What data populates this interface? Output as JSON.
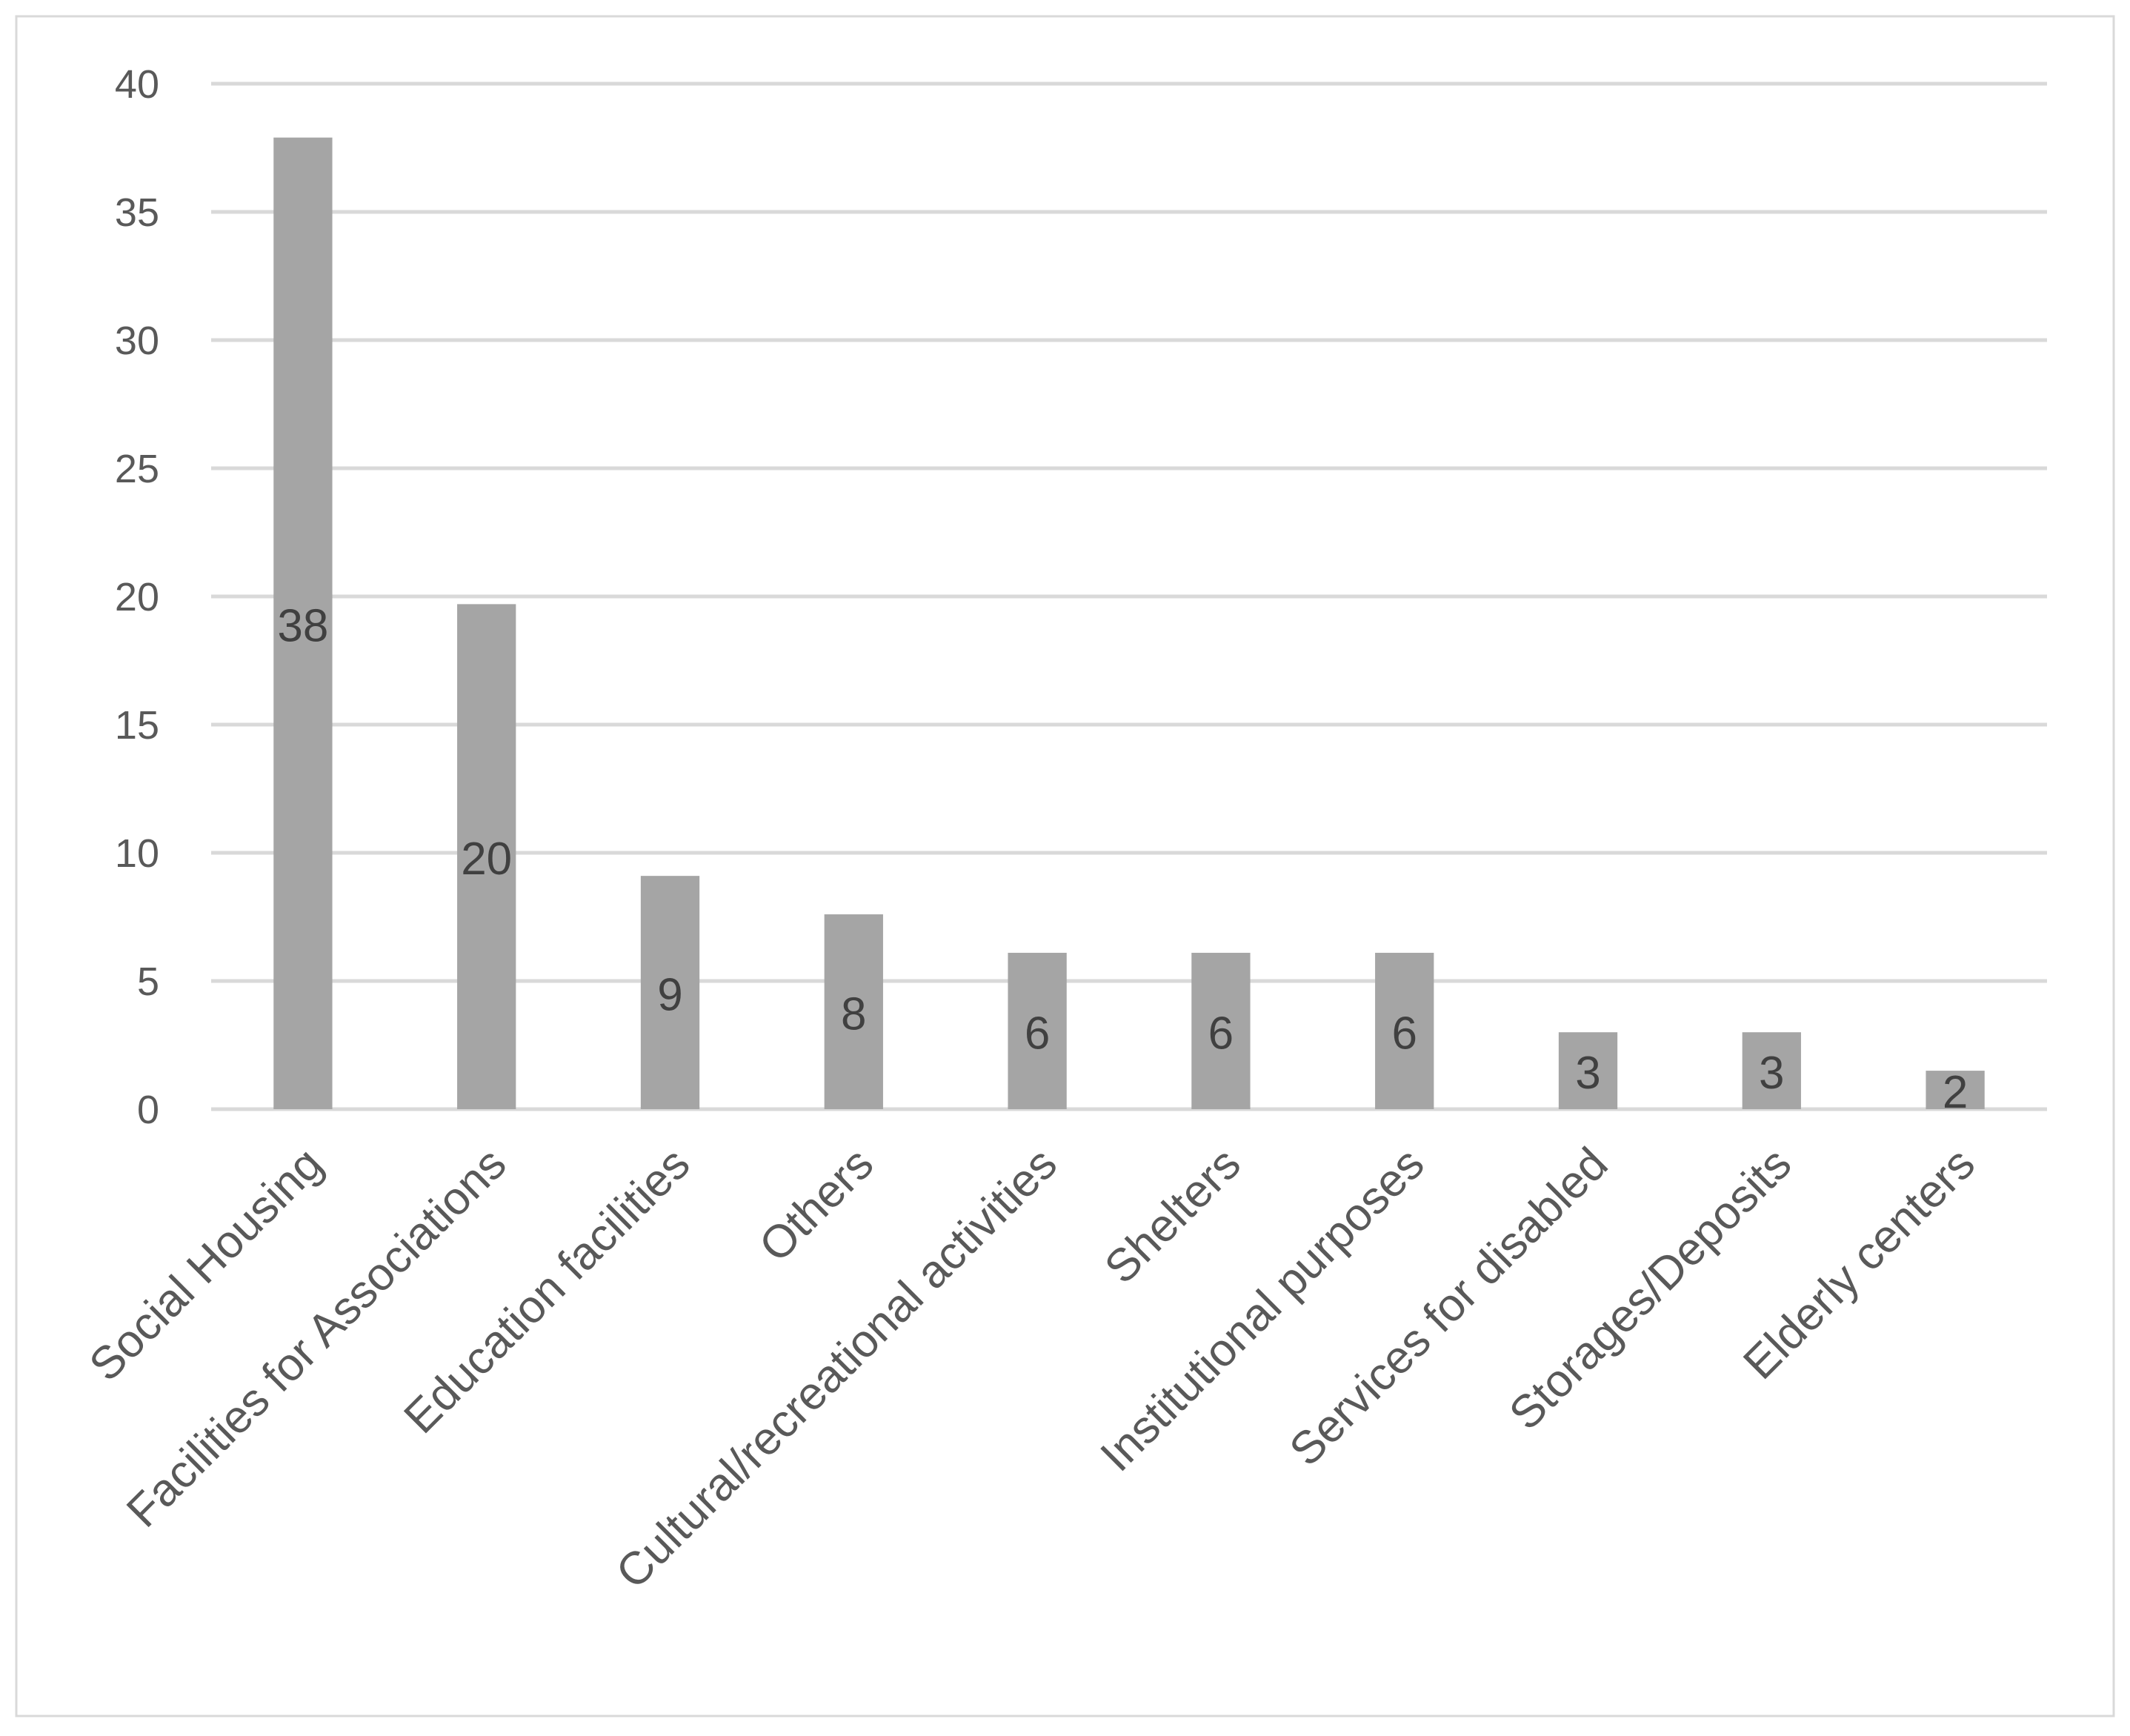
{
  "chart_data": {
    "type": "bar",
    "title": "",
    "xlabel": "",
    "ylabel": "",
    "ylim": [
      0,
      40
    ],
    "yticks": [
      0,
      5,
      10,
      15,
      20,
      25,
      30,
      35,
      40
    ],
    "grid": true,
    "categories": [
      "Social Housing",
      "Facilities for Associations",
      "Education facilities",
      "Others",
      "Cultural/recreational activities",
      "Shelters",
      "Institutional purposes",
      "Services for disabled",
      "Storages/Deposits",
      "Elderly centers"
    ],
    "values": [
      37.9,
      19.7,
      9.1,
      7.6,
      6.1,
      6.1,
      6.1,
      3.0,
      3.0,
      1.5
    ],
    "data_labels": [
      "38",
      "20",
      "9",
      "8",
      "6",
      "6",
      "6",
      "3",
      "3",
      "2"
    ],
    "colors": {
      "bar": "#a5a5a5",
      "grid": "#d9d9d9",
      "axis_text": "#595959",
      "label_text": "#404040",
      "border": "#d9d9d9"
    }
  }
}
